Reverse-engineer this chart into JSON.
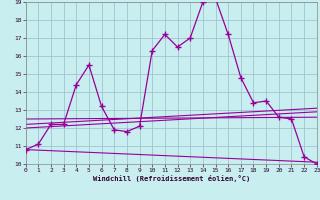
{
  "title": "",
  "xlabel": "Windchill (Refroidissement éolien,°C)",
  "bg_color": "#c8eef0",
  "line_color": "#990099",
  "grid_color": "#99bbcc",
  "x_values": [
    0,
    1,
    2,
    3,
    4,
    5,
    6,
    7,
    8,
    9,
    10,
    11,
    12,
    13,
    14,
    15,
    16,
    17,
    18,
    19,
    20,
    21,
    22,
    23
  ],
  "main_y": [
    10.8,
    11.1,
    12.2,
    12.2,
    14.4,
    15.5,
    13.2,
    11.9,
    11.8,
    12.1,
    16.3,
    17.2,
    16.5,
    17.0,
    19.0,
    19.2,
    17.2,
    14.8,
    13.4,
    13.5,
    12.6,
    12.5,
    10.4,
    10.0
  ],
  "ylim": [
    10,
    19
  ],
  "xlim": [
    0,
    23
  ],
  "yticks": [
    10,
    11,
    12,
    13,
    14,
    15,
    16,
    17,
    18,
    19
  ],
  "xticks": [
    0,
    1,
    2,
    3,
    4,
    5,
    6,
    7,
    8,
    9,
    10,
    11,
    12,
    13,
    14,
    15,
    16,
    17,
    18,
    19,
    20,
    21,
    22,
    23
  ],
  "trend_lines": [
    [
      0,
      10.8,
      23,
      10.1
    ],
    [
      0,
      12.0,
      23,
      12.9
    ],
    [
      0,
      12.2,
      23,
      13.1
    ],
    [
      0,
      12.5,
      23,
      12.6
    ]
  ]
}
